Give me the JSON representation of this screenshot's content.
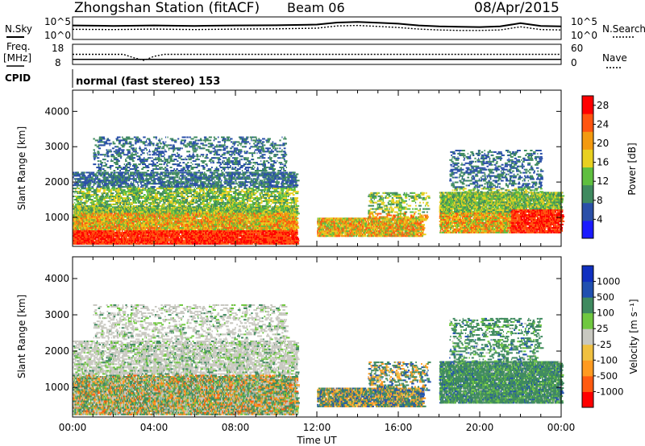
{
  "header": {
    "station": "Zhongshan Station (fitACF)",
    "beam": "Beam 06",
    "date": "08/Apr/2015"
  },
  "side_labels": {
    "nsky": "N.Sky",
    "freq": "Freq.",
    "freq_unit": "[MHz]",
    "cpid": "CPID",
    "nsearch": "N.Search",
    "nave": "Nave"
  },
  "cpid_text": "normal (fast stereo) 153",
  "colors": {
    "power": [
      "#1a1aff",
      "#2a4fa8",
      "#3f8a5f",
      "#5fbf3f",
      "#e8d020",
      "#f39a10",
      "#ff5510",
      "#ff0000"
    ],
    "velocity": [
      "#ff0000",
      "#ff5a10",
      "#ff9a20",
      "#f0c040",
      "#c8c8c0",
      "#70c840",
      "#3f8a5f",
      "#2050b0",
      "#1030c0"
    ]
  },
  "chart_data": [
    {
      "type": "line",
      "panel": "noise",
      "x_unit": "hours UT",
      "left_ticks": [
        "10^5",
        "10^0"
      ],
      "right_ticks": [
        "10^5",
        "10^0"
      ],
      "series": [
        {
          "name": "N.Sky",
          "x": [
            0,
            2,
            4,
            6,
            8,
            10,
            12,
            13,
            14,
            15,
            16,
            17,
            18,
            19,
            20,
            21,
            22,
            23,
            24
          ],
          "values": [
            0.62,
            0.6,
            0.62,
            0.6,
            0.62,
            0.63,
            0.66,
            0.75,
            0.78,
            0.74,
            0.7,
            0.62,
            0.58,
            0.56,
            0.55,
            0.58,
            0.72,
            0.6,
            0.58
          ]
        },
        {
          "name": "N.Search",
          "x": [
            0,
            2,
            4,
            6,
            8,
            10,
            12,
            13,
            14,
            15,
            16,
            17,
            18,
            19,
            20,
            21,
            22,
            23,
            24
          ],
          "values": [
            0.45,
            0.44,
            0.46,
            0.44,
            0.46,
            0.47,
            0.5,
            0.6,
            0.62,
            0.58,
            0.53,
            0.46,
            0.42,
            0.4,
            0.4,
            0.42,
            0.56,
            0.44,
            0.42
          ]
        }
      ]
    },
    {
      "type": "line",
      "panel": "frequency",
      "left_ticks": [
        "18",
        "8"
      ],
      "right_ticks": [
        "60",
        "0"
      ],
      "series": [
        {
          "name": "Freq.",
          "x": [
            0,
            24
          ],
          "values": [
            10.5,
            10.5
          ]
        },
        {
          "name": "Nave",
          "x": [
            0,
            2.5,
            3,
            3.5,
            4,
            4.5,
            12,
            24
          ],
          "values": [
            30,
            30,
            20,
            12,
            24,
            30,
            30,
            30
          ]
        }
      ]
    },
    {
      "type": "heatmap",
      "panel": "power",
      "ylabel": "Slant Range [km]",
      "yticks": [
        1000,
        2000,
        3000,
        4000
      ],
      "ylim": [
        180,
        4600
      ],
      "xlim": [
        0,
        24
      ],
      "colorbar_label": "Power [dB]",
      "colorbar_ticks": [
        4,
        8,
        12,
        16,
        20,
        24,
        28
      ],
      "colorbar_range": [
        0,
        30
      ]
    },
    {
      "type": "heatmap",
      "panel": "velocity",
      "ylabel": "Slant Range [km]",
      "yticks": [
        1000,
        2000,
        3000,
        4000
      ],
      "ylim": [
        180,
        4600
      ],
      "xlim": [
        0,
        24
      ],
      "xlabel": "Time UT",
      "xtick_labels": [
        "00:00",
        "04:00",
        "08:00",
        "12:00",
        "16:00",
        "20:00",
        "00:00"
      ],
      "colorbar_label": "Velocity [m s⁻¹]",
      "colorbar_ticks": [
        "1000",
        "500",
        "100",
        "25",
        "-25",
        "-100",
        "-500",
        "-1000"
      ]
    }
  ]
}
